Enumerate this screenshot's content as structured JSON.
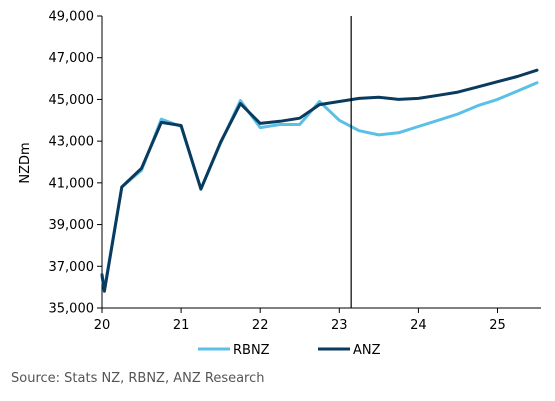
{
  "chart_data": {
    "type": "line",
    "ylabel": "NZDm",
    "ylim": [
      35000,
      49000
    ],
    "xlim": [
      20,
      25.55
    ],
    "y_ticks": [
      {
        "value": 35000,
        "label": "35,000"
      },
      {
        "value": 37000,
        "label": "37,000"
      },
      {
        "value": 39000,
        "label": "39,000"
      },
      {
        "value": 41000,
        "label": "41,000"
      },
      {
        "value": 43000,
        "label": "43,000"
      },
      {
        "value": 45000,
        "label": "45,000"
      },
      {
        "value": 47000,
        "label": "47,000"
      },
      {
        "value": 49000,
        "label": "49,000"
      }
    ],
    "x_ticks": [
      {
        "value": 20,
        "label": "20"
      },
      {
        "value": 21,
        "label": "21"
      },
      {
        "value": 22,
        "label": "22"
      },
      {
        "value": 23,
        "label": "23"
      },
      {
        "value": 24,
        "label": "24"
      },
      {
        "value": 25,
        "label": "25"
      }
    ],
    "vline_x": 23.15,
    "series": [
      {
        "name": "RBNZ",
        "color": "#5bc0e6",
        "x": [
          20,
          20.03,
          20.25,
          20.5,
          20.75,
          21,
          21.25,
          21.5,
          21.75,
          22,
          22.25,
          22.5,
          22.75,
          23,
          23.25,
          23.5,
          23.75,
          24,
          24.25,
          24.5,
          24.75,
          25,
          25.25,
          25.5
        ],
        "values": [
          36500,
          35900,
          40800,
          41600,
          44050,
          43700,
          40700,
          42900,
          44950,
          43650,
          43800,
          43800,
          44900,
          44000,
          43500,
          43300,
          43400,
          43700,
          44000,
          44300,
          44700,
          45000,
          45400,
          45800
        ]
      },
      {
        "name": "ANZ",
        "color": "#0a3a5e",
        "x": [
          20,
          20.03,
          20.25,
          20.5,
          20.75,
          21,
          21.25,
          21.5,
          21.75,
          22,
          22.25,
          22.5,
          22.75,
          23,
          23.25,
          23.5,
          23.75,
          24,
          24.25,
          24.5,
          24.75,
          25,
          25.25,
          25.5
        ],
        "values": [
          36600,
          35800,
          40800,
          41700,
          43900,
          43750,
          40700,
          42950,
          44800,
          43850,
          43950,
          44100,
          44750,
          44900,
          45050,
          45100,
          45000,
          45050,
          45200,
          45350,
          45600,
          45850,
          46100,
          46400
        ]
      }
    ]
  },
  "source_text": "Source: Stats NZ, RBNZ, ANZ Research"
}
